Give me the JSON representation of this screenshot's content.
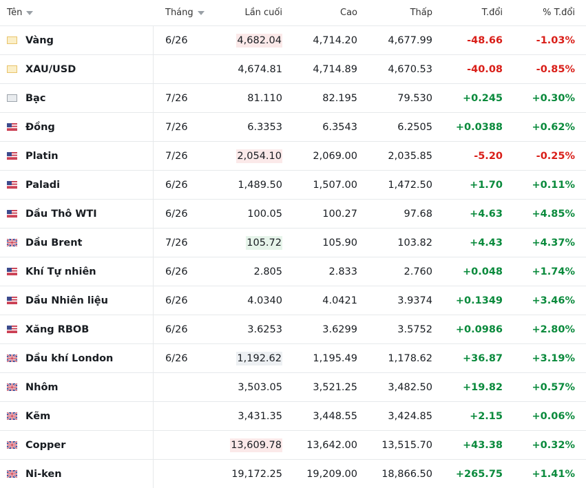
{
  "table": {
    "header": [
      "Tên",
      "Tháng",
      "Lần cuối",
      "Cao",
      "Thấp",
      "T.đổi",
      "% T.đổi"
    ],
    "rows": [
      {
        "icon": "gold",
        "highlight": "red",
        "cells": [
          "Vàng",
          "6/26",
          "4,682.04",
          "4,714.20",
          "4,677.99",
          "-48.66",
          "-1.03%"
        ]
      },
      {
        "icon": "gold",
        "cells": [
          "XAU/USD",
          null,
          "4,674.81",
          "4,714.89",
          "4,670.53",
          "-40.08",
          "-0.85%"
        ]
      },
      {
        "icon": "silver",
        "cells": [
          "Bạc",
          "7/26",
          "81.110",
          "82.195",
          "79.530",
          "+0.245",
          "+0.30%"
        ]
      },
      {
        "icon": "us",
        "cells": [
          "Đồng",
          "7/26",
          "6.3353",
          "6.3543",
          "6.2505",
          "+0.0388",
          "+0.62%"
        ]
      },
      {
        "icon": "us",
        "highlight": "red",
        "cells": [
          "Platin",
          "7/26",
          "2,054.10",
          "2,069.00",
          "2,035.85",
          "-5.20",
          "-0.25%"
        ]
      },
      {
        "icon": "us",
        "cells": [
          "Paladi",
          "6/26",
          "1,489.50",
          "1,507.00",
          "1,472.50",
          "+1.70",
          "+0.11%"
        ]
      },
      {
        "icon": "us",
        "cells": [
          "Dầu Thô WTI",
          "6/26",
          "100.05",
          "100.27",
          "97.68",
          "+4.63",
          "+4.85%"
        ]
      },
      {
        "icon": "uk",
        "highlight": "green",
        "cells": [
          "Dầu Brent",
          "7/26",
          "105.72",
          "105.90",
          "103.82",
          "+4.43",
          "+4.37%"
        ]
      },
      {
        "icon": "us",
        "cells": [
          "Khí Tự nhiên",
          "6/26",
          "2.805",
          "2.833",
          "2.760",
          "+0.048",
          "+1.74%"
        ]
      },
      {
        "icon": "us",
        "cells": [
          "Dầu Nhiên liệu",
          "6/26",
          "4.0340",
          "4.0421",
          "3.9374",
          "+0.1349",
          "+3.46%"
        ]
      },
      {
        "icon": "us",
        "cells": [
          "Xăng RBOB",
          "6/26",
          "3.6253",
          "3.6299",
          "3.5752",
          "+0.0986",
          "+2.80%"
        ]
      },
      {
        "icon": "uk",
        "highlight": "gray",
        "cells": [
          "Dầu khí London",
          "6/26",
          "1,192.62",
          "1,195.49",
          "1,178.62",
          "+36.87",
          "+3.19%"
        ]
      },
      {
        "icon": "uk",
        "cells": [
          "Nhôm",
          null,
          "3,503.05",
          "3,521.25",
          "3,482.50",
          "+19.82",
          "+0.57%"
        ]
      },
      {
        "icon": "uk",
        "cells": [
          "Kẽm",
          null,
          "3,431.35",
          "3,448.55",
          "3,424.85",
          "+2.15",
          "+0.06%"
        ]
      },
      {
        "icon": "uk",
        "highlight": "red",
        "cells": [
          "Copper",
          null,
          "13,609.78",
          "13,642.00",
          "13,515.70",
          "+43.38",
          "+0.32%"
        ]
      },
      {
        "icon": "uk",
        "cells": [
          "Ni-ken",
          null,
          "19,172.25",
          "19,209.00",
          "18,866.50",
          "+265.75",
          "+1.41%"
        ]
      }
    ]
  }
}
